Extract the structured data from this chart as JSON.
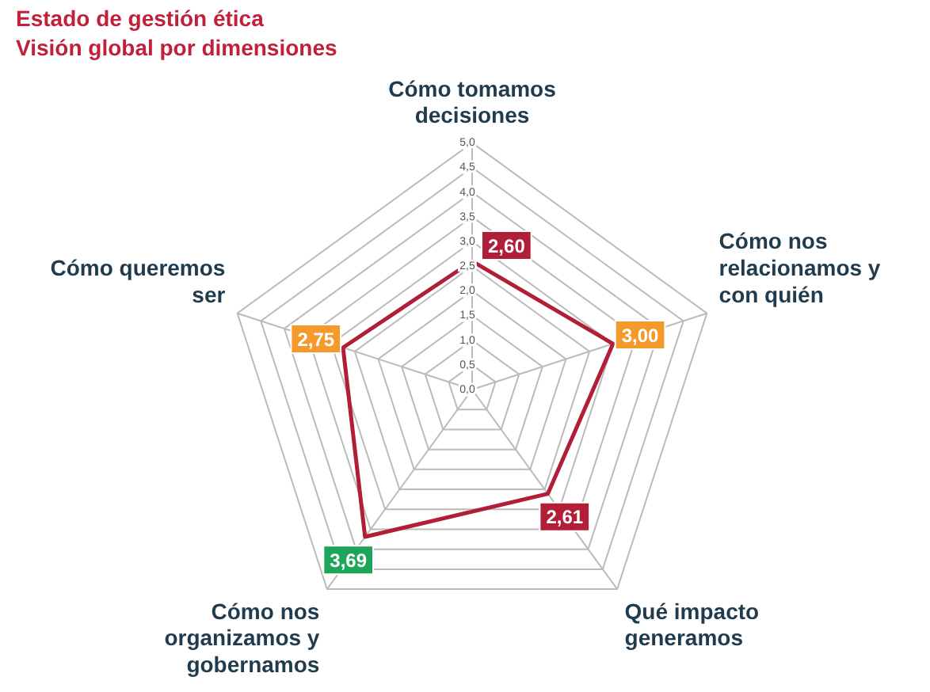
{
  "chart_data": {
    "type": "radar",
    "title": "Estado de gestión ética",
    "subtitle": "Visión global por dimensiones",
    "categories": [
      "Cómo tomamos decisiones",
      "Cómo nos relacionamos y con quién",
      "Qué impacto generamos",
      "Cómo nos organizamos y gobernamos",
      "Cómo queremos ser"
    ],
    "series": [
      {
        "color": "#b01e37",
        "values": [
          2.6,
          3.0,
          2.61,
          3.69,
          2.75
        ],
        "value_labels": [
          "2,60",
          "3,00",
          "2,61",
          "3,69",
          "2,75"
        ],
        "colors": [
          "#b01e37",
          "#f39a2a",
          "#b01e37",
          "#1fa55a",
          "#f39a2a"
        ]
      }
    ],
    "ylim": [
      0,
      5
    ],
    "yticks": [
      {
        "value": 0,
        "label": "0,0"
      },
      {
        "value": 0.5,
        "label": "0,5"
      },
      {
        "value": 1,
        "label": "1,0"
      },
      {
        "value": 1.5,
        "label": "1,5"
      },
      {
        "value": 2,
        "label": "2,0"
      },
      {
        "value": 2.5,
        "label": "2,5"
      },
      {
        "value": 3,
        "label": "3,0"
      },
      {
        "value": 3.5,
        "label": "3,5"
      },
      {
        "value": 4,
        "label": "4,0"
      },
      {
        "value": 4.5,
        "label": "4,5"
      },
      {
        "value": 5,
        "label": "5,0"
      }
    ],
    "grid": true,
    "legend": false,
    "marker": "none",
    "line_style": "solid"
  }
}
